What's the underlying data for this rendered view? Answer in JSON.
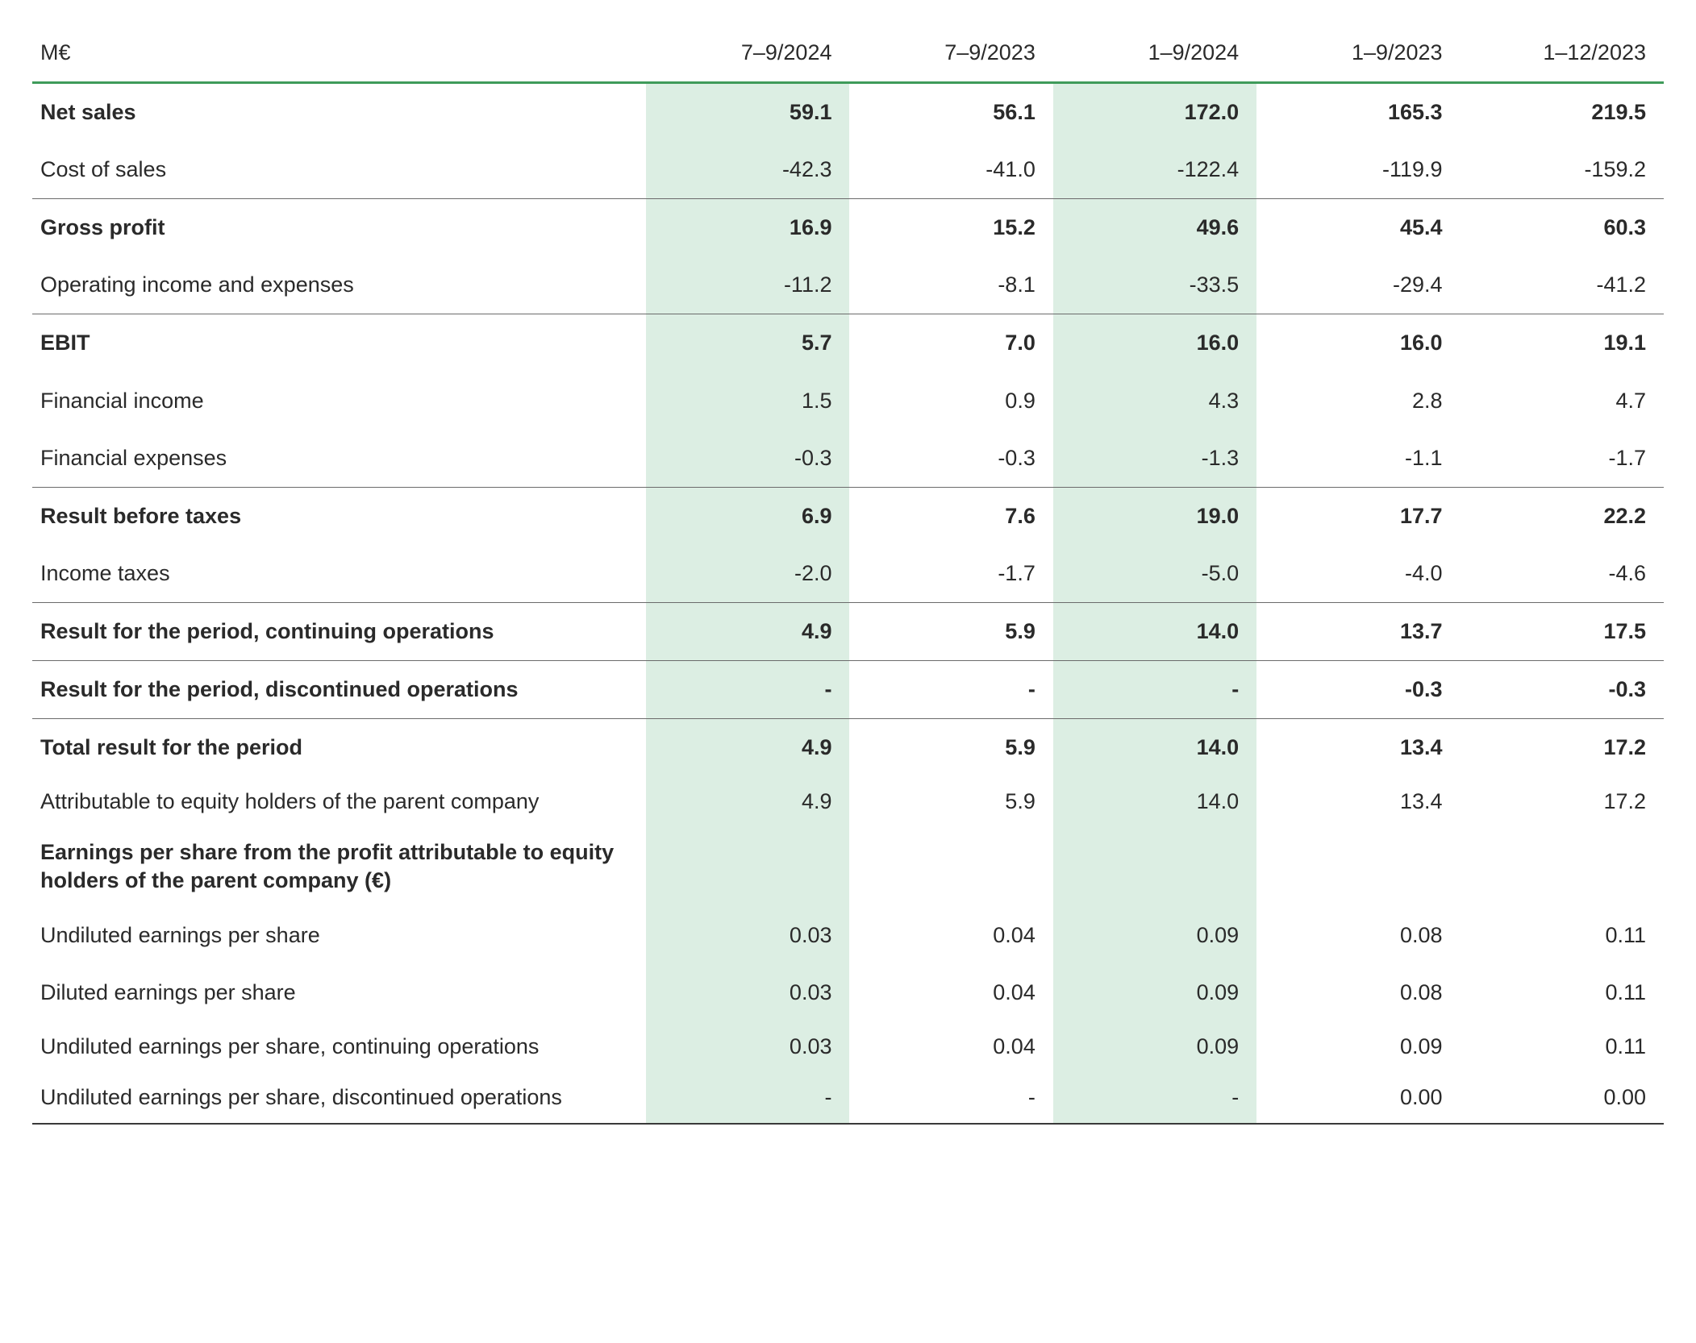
{
  "table": {
    "unit_header": "M€",
    "highlight_columns": [
      0,
      2
    ],
    "colors": {
      "text": "#2a2a2a",
      "accent_green": "#3f9b5a",
      "highlight_bg": "#dceee3",
      "border_light": "#6b6b6b",
      "border_dark": "#3a3a3a",
      "background": "#ffffff"
    },
    "columns": [
      "7–9/2024",
      "7–9/2023",
      "1–9/2024",
      "1–9/2023",
      "1–12/2023"
    ],
    "rows": [
      {
        "label": "Net sales",
        "values": [
          "59.1",
          "56.1",
          "172.0",
          "165.3",
          "219.5"
        ],
        "bold": true,
        "sep_below": false
      },
      {
        "label": "Cost of sales",
        "values": [
          "-42.3",
          "-41.0",
          "-122.4",
          "-119.9",
          "-159.2"
        ],
        "bold": false,
        "sep_below": true
      },
      {
        "label": "Gross profit",
        "values": [
          "16.9",
          "15.2",
          "49.6",
          "45.4",
          "60.3"
        ],
        "bold": true,
        "sep_below": false
      },
      {
        "label": "Operating income and expenses",
        "values": [
          "-11.2",
          "-8.1",
          "-33.5",
          "-29.4",
          "-41.2"
        ],
        "bold": false,
        "sep_below": true
      },
      {
        "label": "EBIT",
        "values": [
          "5.7",
          "7.0",
          "16.0",
          "16.0",
          "19.1"
        ],
        "bold": true,
        "sep_below": false
      },
      {
        "label": "Financial income",
        "values": [
          "1.5",
          "0.9",
          "4.3",
          "2.8",
          "4.7"
        ],
        "bold": false,
        "sep_below": false
      },
      {
        "label": "Financial expenses",
        "values": [
          "-0.3",
          "-0.3",
          "-1.3",
          "-1.1",
          "-1.7"
        ],
        "bold": false,
        "sep_below": true
      },
      {
        "label": "Result before taxes",
        "values": [
          "6.9",
          "7.6",
          "19.0",
          "17.7",
          "22.2"
        ],
        "bold": true,
        "sep_below": false
      },
      {
        "label": "Income taxes",
        "values": [
          "-2.0",
          "-1.7",
          "-5.0",
          "-4.0",
          "-4.6"
        ],
        "bold": false,
        "sep_below": true
      },
      {
        "label": "Result for the period, continuing operations",
        "values": [
          "4.9",
          "5.9",
          "14.0",
          "13.7",
          "17.5"
        ],
        "bold": true,
        "sep_below": true
      },
      {
        "label": "Result for the period, discontinued operations",
        "values": [
          "-",
          "-",
          "-",
          "-0.3",
          "-0.3"
        ],
        "bold": true,
        "sep_below": true
      },
      {
        "label": "Total result for the period",
        "values": [
          "4.9",
          "5.9",
          "14.0",
          "13.4",
          "17.2"
        ],
        "bold": true,
        "sep_below": false
      },
      {
        "label": "Attributable to equity holders of the parent company",
        "values": [
          "4.9",
          "5.9",
          "14.0",
          "13.4",
          "17.2"
        ],
        "bold": false,
        "sep_below": false,
        "multiline": true
      },
      {
        "label": "Earnings per share from the profit attributable to equity holders of the parent company (€)",
        "values": [
          "",
          "",
          "",
          "",
          ""
        ],
        "bold": true,
        "sep_below": false,
        "multiline": true
      },
      {
        "label": "Undiluted earnings per share",
        "values": [
          "0.03",
          "0.04",
          "0.09",
          "0.08",
          "0.11"
        ],
        "bold": false,
        "sep_below": false
      },
      {
        "label": "Diluted earnings per share",
        "values": [
          "0.03",
          "0.04",
          "0.09",
          "0.08",
          "0.11"
        ],
        "bold": false,
        "sep_below": false
      },
      {
        "label": "Undiluted earnings per share, continuing operations",
        "values": [
          "0.03",
          "0.04",
          "0.09",
          "0.09",
          "0.11"
        ],
        "bold": false,
        "sep_below": false,
        "multiline": true
      },
      {
        "label": "Undiluted earnings per share, discontinued operations",
        "values": [
          "-",
          "-",
          "-",
          "0.00",
          "0.00"
        ],
        "bold": false,
        "sep_below": false,
        "multiline": true,
        "last": true
      }
    ]
  }
}
